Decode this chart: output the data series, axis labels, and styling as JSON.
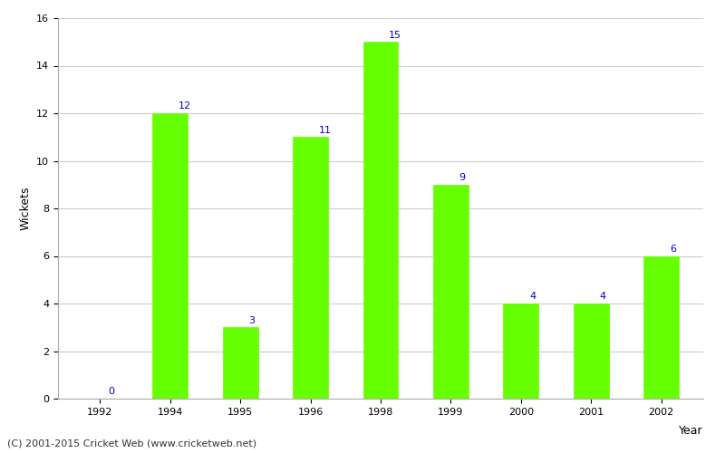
{
  "years": [
    "1992",
    "1994",
    "1995",
    "1996",
    "1998",
    "1999",
    "2000",
    "2001",
    "2002"
  ],
  "wickets": [
    0,
    12,
    3,
    11,
    15,
    9,
    4,
    4,
    6
  ],
  "bar_color": "#66ff00",
  "label_color": "#0000cc",
  "ylabel": "Wickets",
  "xlabel_right": "Year",
  "ylim": [
    0,
    16
  ],
  "yticks": [
    0,
    2,
    4,
    6,
    8,
    10,
    12,
    14,
    16
  ],
  "background_color": "#ffffff",
  "grid_color": "#cccccc",
  "label_fontsize": 8,
  "axis_label_fontsize": 9,
  "tick_fontsize": 8,
  "footer_text": "(C) 2001-2015 Cricket Web (www.cricketweb.net)",
  "footer_fontsize": 8,
  "footer_color": "#333333"
}
